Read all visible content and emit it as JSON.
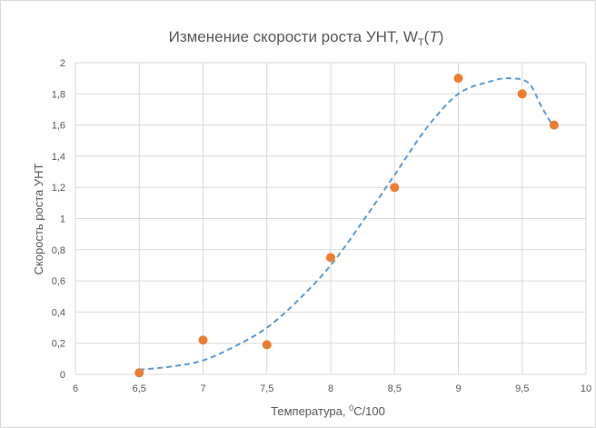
{
  "chart_data": {
    "type": "scatter",
    "title": {
      "main": "Изменение скорости роста УНТ, W",
      "sub": "T",
      "paren_open": "(",
      "var": "T",
      "paren_close": ")"
    },
    "xlabel": {
      "main": "Температура, ",
      "sup": "0",
      "rest": "C/100"
    },
    "ylabel": "Скорость роста УНТ",
    "xlim": [
      6,
      10
    ],
    "ylim": [
      0,
      2
    ],
    "x_ticks": [
      "6",
      "6,5",
      "7",
      "7,5",
      "8",
      "8,5",
      "9",
      "9,5",
      "10"
    ],
    "y_ticks": [
      "0",
      "0,2",
      "0,4",
      "0,6",
      "0,8",
      "1",
      "1,2",
      "1,4",
      "1,6",
      "1,8",
      "2"
    ],
    "grid": true,
    "series": [
      {
        "kind": "points",
        "color": "#ED7D31",
        "x": [
          6.5,
          7.0,
          7.5,
          8.0,
          8.5,
          9.0,
          9.5,
          9.75
        ],
        "y": [
          0.01,
          0.22,
          0.19,
          0.75,
          1.2,
          1.9,
          1.8,
          1.6
        ]
      },
      {
        "kind": "trend",
        "style": "dashed",
        "color": "#5B9BD5",
        "x": [
          6.5,
          6.75,
          7.0,
          7.25,
          7.5,
          7.75,
          8.0,
          8.25,
          8.5,
          8.75,
          9.0,
          9.25,
          9.4,
          9.55,
          9.65,
          9.75
        ],
        "y": [
          0.03,
          0.05,
          0.09,
          0.18,
          0.3,
          0.48,
          0.7,
          0.98,
          1.28,
          1.58,
          1.8,
          1.88,
          1.9,
          1.87,
          1.72,
          1.58
        ]
      }
    ]
  }
}
